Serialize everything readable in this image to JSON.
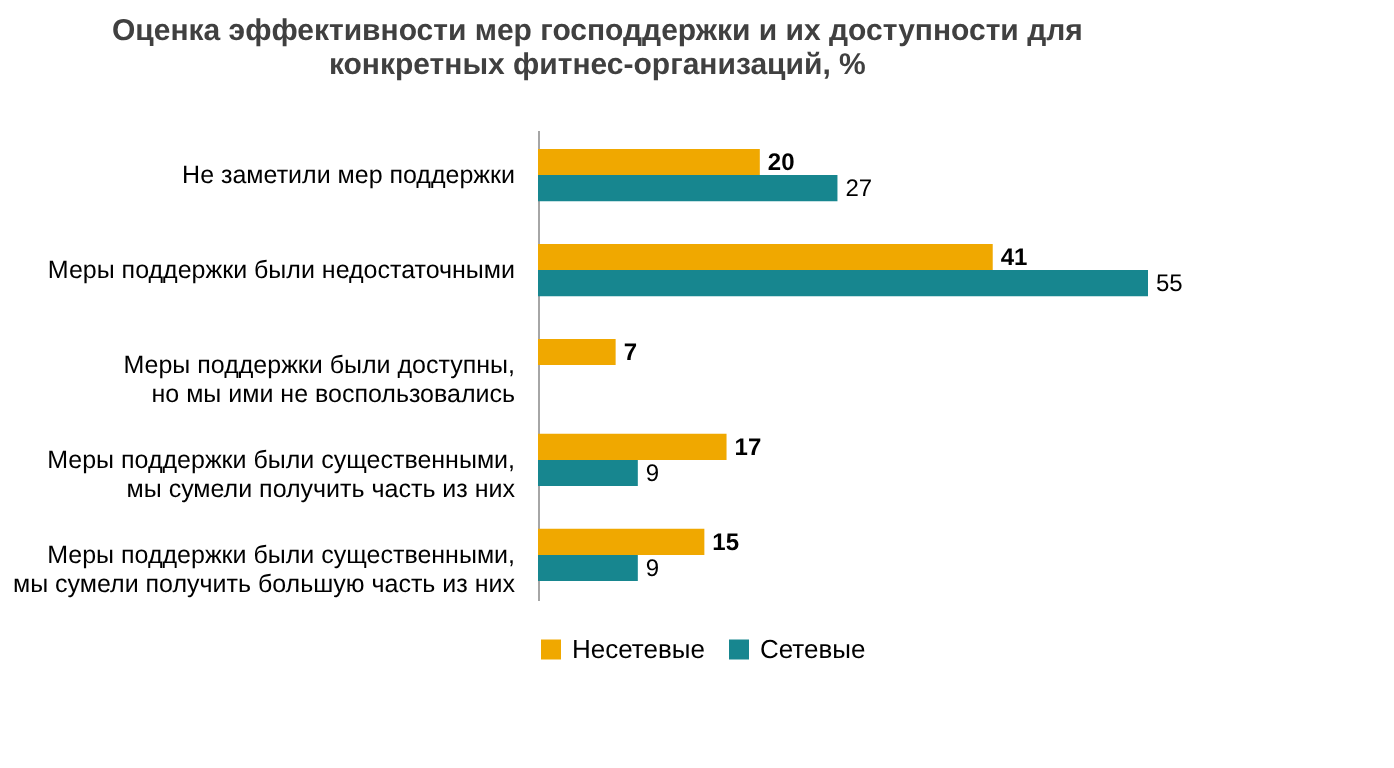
{
  "chart_data": {
    "type": "bar",
    "orientation": "horizontal",
    "title": "Оценка эффективности мер господдержки и их доступности для\nконкретных фитнес-организаций, %",
    "categories": [
      "Не заметили мер поддержки",
      "Меры поддержки были недостаточными",
      "Меры поддержки были доступны,\nно мы ими не воспользовались",
      "Меры поддержки были существенными,\nмы сумели получить часть из них",
      "Меры поддержки были существенными,\nмы сумели получить большую часть из них"
    ],
    "series": [
      {
        "name": "Несетевые",
        "color": "#f0a800",
        "values": [
          20,
          41,
          7,
          17,
          15
        ]
      },
      {
        "name": "Сетевые",
        "color": "#17868f",
        "values": [
          27,
          55,
          null,
          9,
          9
        ]
      }
    ],
    "data_labels": true,
    "grid": false,
    "legend": "bottom"
  }
}
